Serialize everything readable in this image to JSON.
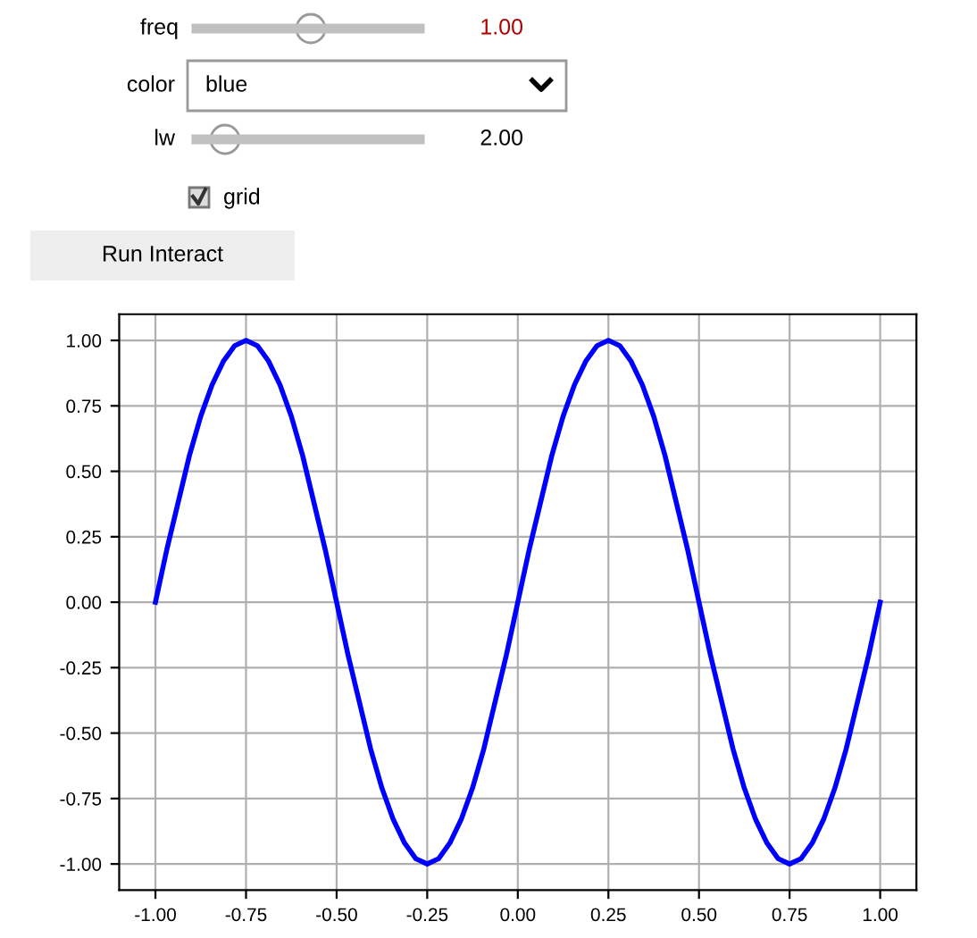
{
  "chart_data": [
    {
      "type": "other",
      "annotations": [
        "freq",
        "1.00",
        "color",
        "blue",
        "lw",
        "2.00",
        "grid",
        "Run Interact"
      ]
    },
    {
      "type": "line",
      "line_style": "solid",
      "grid": true,
      "x": [
        -1,
        -0.96875,
        -0.9375,
        -0.90625,
        -0.875,
        -0.84375,
        -0.8125,
        -0.78125,
        -0.75,
        -0.71875,
        -0.6875,
        -0.65625,
        -0.625,
        -0.59375,
        -0.5625,
        -0.53125,
        -0.5,
        -0.46875,
        -0.4375,
        -0.40625,
        -0.375,
        -0.34375,
        -0.3125,
        -0.28125,
        -0.25,
        -0.21875,
        -0.1875,
        -0.15625,
        -0.125,
        -0.09375,
        -0.0625,
        -0.03125,
        0,
        0.03125,
        0.0625,
        0.09375,
        0.125,
        0.15625,
        0.1875,
        0.21875,
        0.25,
        0.28125,
        0.3125,
        0.34375,
        0.375,
        0.40625,
        0.4375,
        0.46875,
        0.5,
        0.53125,
        0.5625,
        0.59375,
        0.625,
        0.65625,
        0.6875,
        0.71875,
        0.75,
        0.78125,
        0.8125,
        0.84375,
        0.875,
        0.90625,
        0.9375,
        0.96875,
        1
      ],
      "series": [
        {
          "color": "#0000ff",
          "values": [
            0,
            0.2,
            0.38,
            0.56,
            0.71,
            0.83,
            0.92,
            0.98,
            1,
            0.98,
            0.92,
            0.83,
            0.71,
            0.56,
            0.38,
            0.2,
            0,
            -0.2,
            -0.38,
            -0.56,
            -0.71,
            -0.83,
            -0.92,
            -0.98,
            -1,
            -0.98,
            -0.92,
            -0.83,
            -0.71,
            -0.56,
            -0.38,
            -0.2,
            0,
            0.2,
            0.38,
            0.56,
            0.71,
            0.83,
            0.92,
            0.98,
            1,
            0.98,
            0.92,
            0.83,
            0.71,
            0.56,
            0.38,
            0.2,
            0,
            -0.2,
            -0.38,
            -0.56,
            -0.71,
            -0.83,
            -0.92,
            -0.98,
            -1,
            -0.98,
            -0.92,
            -0.83,
            -0.71,
            -0.56,
            -0.38,
            -0.2,
            0
          ]
        }
      ],
      "xlim": [
        -1.1,
        1.1
      ],
      "ylim": [
        -1.1,
        1.1
      ],
      "xticks": [
        {
          "value": -1,
          "label": "-1.00"
        },
        {
          "value": -0.75,
          "label": "-0.75"
        },
        {
          "value": -0.5,
          "label": "-0.50"
        },
        {
          "value": -0.25,
          "label": "-0.25"
        },
        {
          "value": 0,
          "label": "0.00"
        },
        {
          "value": 0.25,
          "label": "0.25"
        },
        {
          "value": 0.5,
          "label": "0.50"
        },
        {
          "value": 0.75,
          "label": "0.75"
        },
        {
          "value": 1,
          "label": "1.00"
        }
      ],
      "yticks": [
        {
          "value": -1,
          "label": "-1.00"
        },
        {
          "value": -0.75,
          "label": "-0.75"
        },
        {
          "value": -0.5,
          "label": "-0.50"
        },
        {
          "value": -0.25,
          "label": "-0.25"
        },
        {
          "value": 0,
          "label": "0.00"
        },
        {
          "value": 0.25,
          "label": "0.25"
        },
        {
          "value": 0.5,
          "label": "0.50"
        },
        {
          "value": 0.75,
          "label": "0.75"
        },
        {
          "value": 1,
          "label": "1.00"
        }
      ]
    }
  ]
}
